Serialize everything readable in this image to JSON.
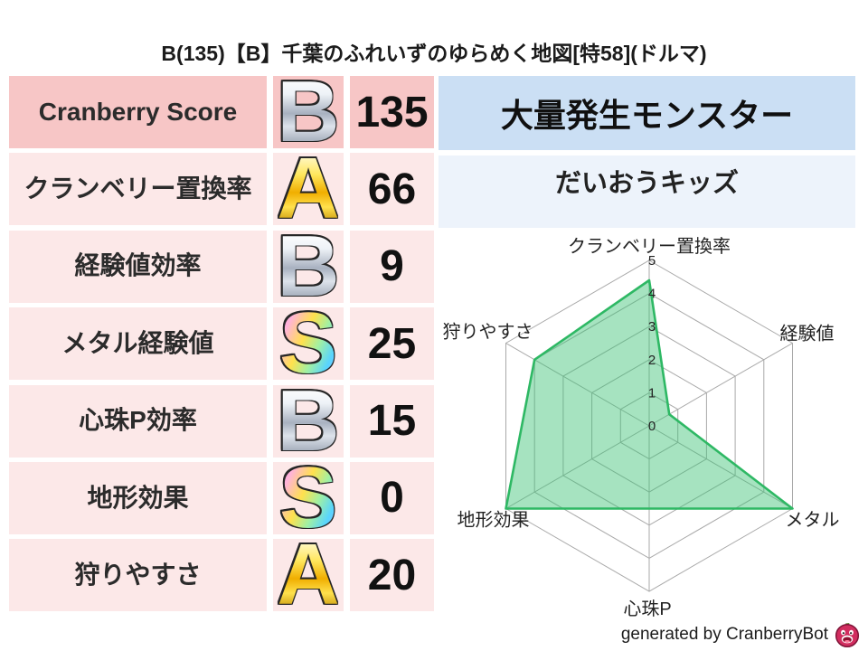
{
  "title": "B(135)【B】千葉のふれいずのゆらめく地図[特58](ドルマ)",
  "table": {
    "rows": [
      {
        "label": "Cranberry Score",
        "rank": "B",
        "value": "135"
      },
      {
        "label": "クランベリー置換率",
        "rank": "A",
        "value": "66"
      },
      {
        "label": "経験値効率",
        "rank": "B",
        "value": "9"
      },
      {
        "label": "メタル経験値",
        "rank": "S",
        "value": "25"
      },
      {
        "label": "心珠P効率",
        "rank": "B",
        "value": "15"
      },
      {
        "label": "地形効果",
        "rank": "S",
        "value": "0"
      },
      {
        "label": "狩りやすさ",
        "rank": "A",
        "value": "20"
      }
    ]
  },
  "monster": {
    "header": "大量発生モンスター",
    "name": "だいおうキッズ"
  },
  "footer": {
    "credit": "generated by CranberryBot",
    "icon": "cranberry-slime-icon"
  },
  "colors": {
    "row_header_pink": "#f7c6c6",
    "row_pink": "#fce8e8",
    "monster_header_blue": "#cbdff4",
    "monster_row_blue": "#edf3fb",
    "radar_fill": "rgba(57,193,115,0.45)",
    "radar_stroke": "#2eb864",
    "radar_grid": "#a9a9a9",
    "radar_text": "#222222"
  },
  "chart_data": {
    "type": "radar",
    "title": "",
    "categories": [
      "クランベリー置換率",
      "経験値",
      "メタル",
      "心珠P",
      "地形効果",
      "狩りやすさ"
    ],
    "values": [
      4.4,
      0.7,
      5,
      2.5,
      5,
      4
    ],
    "tick_labels": [
      "0",
      "1",
      "2",
      "3",
      "4",
      "5"
    ],
    "range": [
      0,
      5
    ],
    "grid": true,
    "legend": false,
    "grid_shape": "hexagon"
  }
}
